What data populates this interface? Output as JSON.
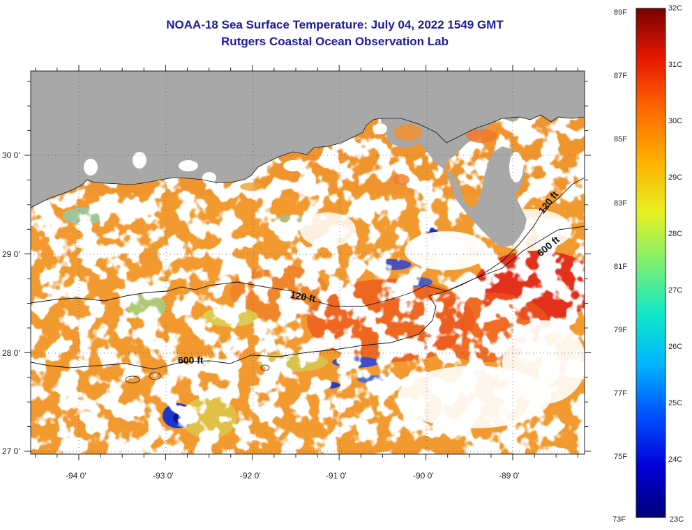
{
  "title": "NOAA-18 Sea Surface Temperature:  July 04, 2022 1549 GMT",
  "subtitle": "Rutgers Coastal Ocean Observation Lab",
  "x_ticks": [
    "-94 0'",
    "-93 0'",
    "-92 0'",
    "-91 0'",
    "-90 0'",
    "-89 0'"
  ],
  "y_ticks": [
    "30 0'",
    "29 0'",
    "28 0'",
    "27 0'"
  ],
  "contour_labels": [
    {
      "text": "120 ft",
      "lon": -91.3,
      "lat": 28.55
    },
    {
      "text": "600 ft",
      "lon": -92.8,
      "lat": 27.95
    },
    {
      "text": "120 ft",
      "lon": -88.7,
      "lat": 29.6
    },
    {
      "text": "600 ft",
      "lon": -88.4,
      "lat": 29.1
    }
  ],
  "colorbar": {
    "fahrenheit": [
      "89F",
      "87F",
      "85F",
      "83F",
      "81F",
      "79F",
      "77F",
      "75F",
      "73F"
    ],
    "celsius": [
      "32C",
      "31C",
      "30C",
      "29C",
      "28C",
      "27C",
      "26C",
      "25C",
      "24C",
      "23C"
    ]
  },
  "colors": {
    "land": "#a8a8a8",
    "cloud": "#ffffff",
    "title": "#1a1aa0",
    "warm_dominant": "#f08a2a",
    "hot": "#e8341c",
    "cool": "#1a30c8"
  }
}
